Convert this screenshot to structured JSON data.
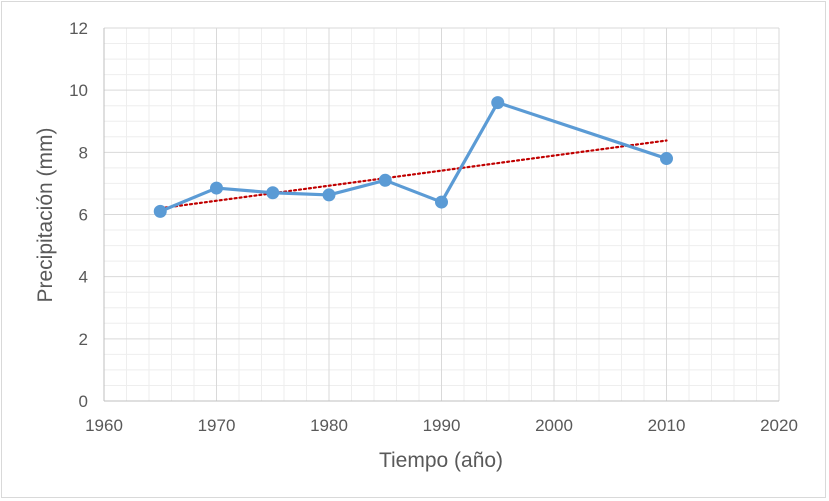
{
  "chart_data": {
    "type": "line",
    "title": "",
    "xlabel": "Tiempo (año)",
    "ylabel": "Precipitación (mm)",
    "xlim": [
      1960,
      2020
    ],
    "ylim": [
      0,
      12
    ],
    "x_ticks": [
      1960,
      1970,
      1980,
      1990,
      2000,
      2010,
      2020
    ],
    "y_ticks": [
      0,
      2,
      4,
      6,
      8,
      10,
      12
    ],
    "grid": true,
    "minor_grid": true,
    "legend": "none",
    "series": [
      {
        "x": [
          1965,
          1970,
          1975,
          1980,
          1985,
          1990,
          1995,
          2010
        ],
        "y": [
          6.1,
          6.85,
          6.7,
          6.63,
          7.1,
          6.4,
          9.6,
          7.8
        ],
        "color": "#5b9bd5",
        "marker": "circle"
      }
    ],
    "trendline": {
      "type": "linear",
      "x": [
        1965,
        2010
      ],
      "y": [
        6.2,
        8.38
      ],
      "color": "#c00000",
      "style": "dotted"
    }
  }
}
